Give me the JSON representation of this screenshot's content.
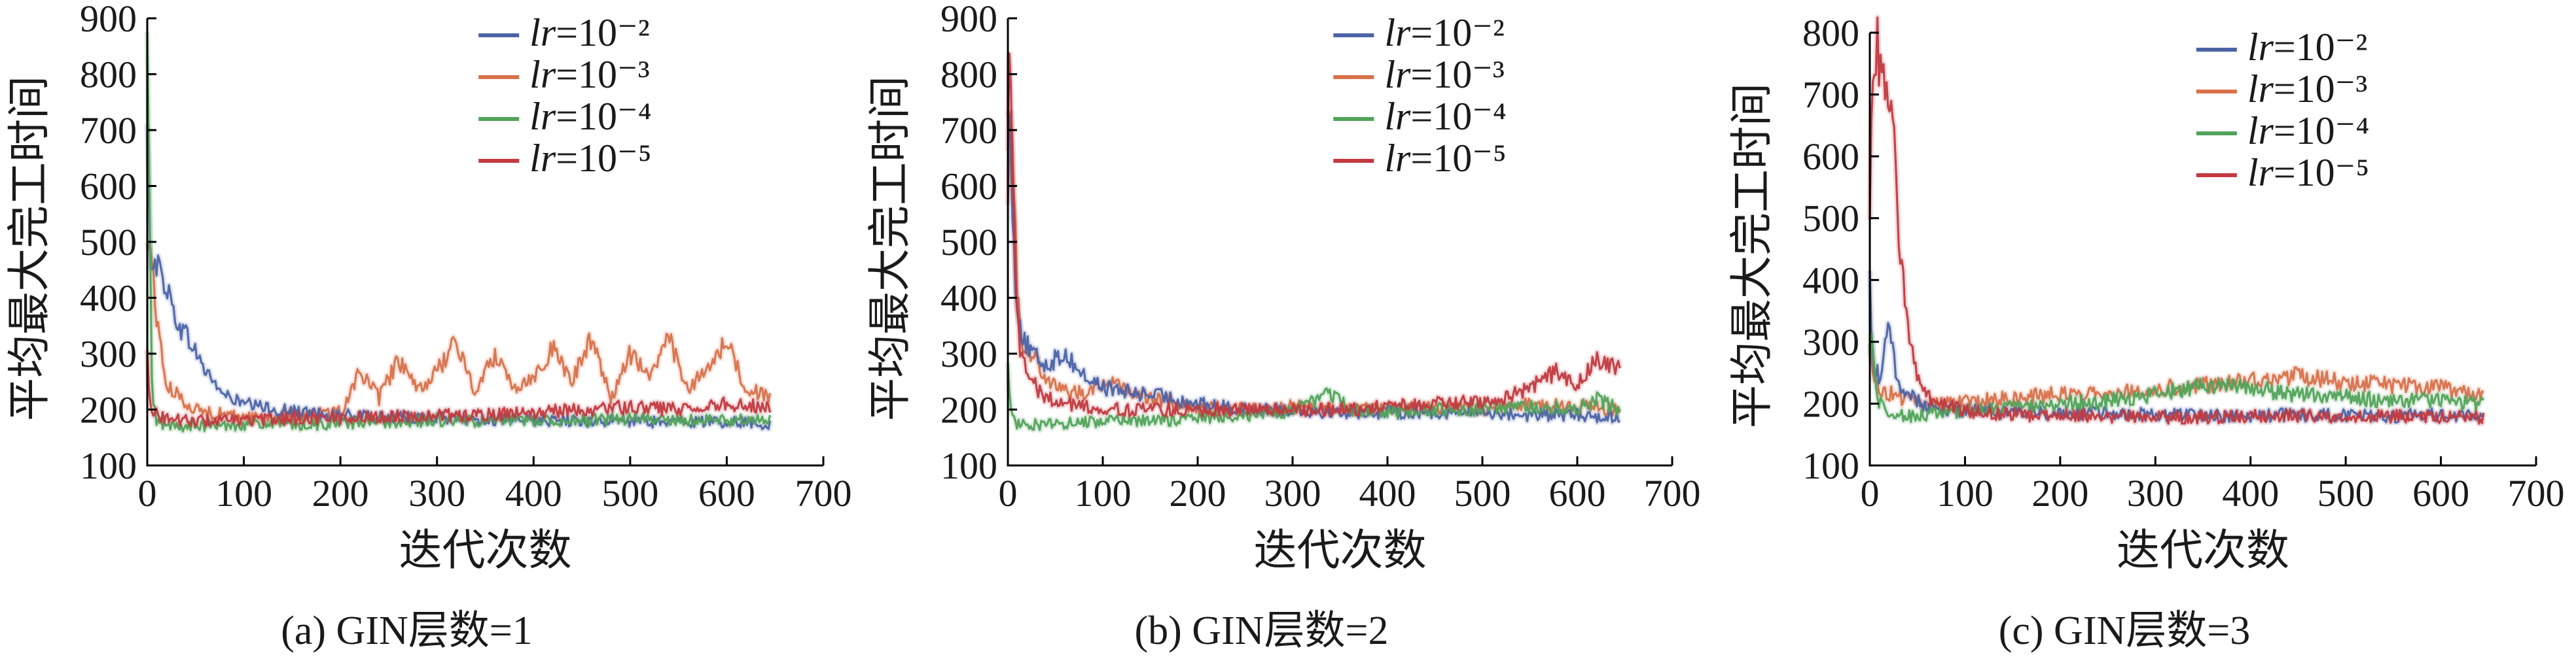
{
  "colors": {
    "lr_1e-2": "#4c63a6",
    "lr_1e-3": "#d9714a",
    "lr_1e-4": "#52a35a",
    "lr_1e-5": "#c23a3f"
  },
  "chart_data": [
    {
      "type": "line",
      "caption": "(a) GIN层数=1",
      "xlabel": "迭代次数",
      "ylabel": "平均最大完工时间",
      "xlim": [
        0,
        700
      ],
      "ylim": [
        100,
        900
      ],
      "xticks": [
        0,
        100,
        200,
        300,
        400,
        500,
        600,
        700
      ],
      "yticks": [
        100,
        200,
        300,
        400,
        500,
        600,
        700,
        800,
        900
      ],
      "legend_position": "top-right",
      "series": [
        {
          "name": "lr=10⁻²",
          "color_key": "lr_1e-2",
          "x": [
            0,
            3,
            10,
            20,
            30,
            45,
            60,
            80,
            100,
            130,
            160,
            200,
            250,
            300,
            350,
            400,
            450,
            500,
            550,
            600,
            645
          ],
          "y": [
            700,
            480,
            460,
            420,
            360,
            320,
            270,
            225,
            210,
            200,
            195,
            190,
            185,
            185,
            182,
            180,
            180,
            178,
            178,
            178,
            175
          ]
        },
        {
          "name": "lr=10⁻³",
          "color_key": "lr_1e-3",
          "x": [
            0,
            3,
            10,
            20,
            35,
            50,
            80,
            120,
            160,
            200,
            220,
            240,
            260,
            280,
            300,
            320,
            340,
            360,
            380,
            400,
            420,
            440,
            460,
            480,
            500,
            520,
            540,
            560,
            580,
            600,
            620,
            645
          ],
          "y": [
            490,
            500,
            360,
            240,
            220,
            200,
            190,
            185,
            190,
            195,
            270,
            220,
            290,
            230,
            270,
            320,
            230,
            300,
            240,
            260,
            310,
            250,
            330,
            220,
            300,
            260,
            330,
            230,
            280,
            320,
            240,
            220
          ]
        },
        {
          "name": "lr=10⁻⁴",
          "color_key": "lr_1e-4",
          "x": [
            0,
            2,
            5,
            10,
            20,
            40,
            80,
            120,
            160,
            200,
            250,
            300,
            350,
            400,
            450,
            500,
            550,
            600,
            645
          ],
          "y": [
            860,
            600,
            220,
            180,
            170,
            170,
            172,
            175,
            172,
            175,
            178,
            180,
            178,
            182,
            180,
            185,
            180,
            182,
            180
          ]
        },
        {
          "name": "lr=10⁻⁵",
          "color_key": "lr_1e-5",
          "x": [
            0,
            2,
            5,
            10,
            20,
            40,
            80,
            120,
            160,
            200,
            250,
            300,
            350,
            400,
            450,
            500,
            550,
            600,
            645
          ],
          "y": [
            300,
            240,
            200,
            190,
            185,
            180,
            180,
            182,
            185,
            185,
            188,
            190,
            190,
            195,
            200,
            205,
            200,
            210,
            205
          ]
        }
      ]
    },
    {
      "type": "line",
      "caption": "(b) GIN层数=2",
      "xlabel": "迭代次数",
      "ylabel": "平均最大完工时间",
      "xlim": [
        0,
        700
      ],
      "ylim": [
        100,
        900
      ],
      "xticks": [
        0,
        100,
        200,
        300,
        400,
        500,
        600,
        700
      ],
      "yticks": [
        100,
        200,
        300,
        400,
        500,
        600,
        700,
        800,
        900
      ],
      "legend_position": "top-right",
      "series": [
        {
          "name": "lr=10⁻²",
          "color_key": "lr_1e-2",
          "x": [
            0,
            3,
            8,
            15,
            25,
            40,
            60,
            80,
            100,
            130,
            160,
            200,
            250,
            300,
            350,
            400,
            450,
            500,
            550,
            600,
            645
          ],
          "y": [
            780,
            650,
            420,
            330,
            300,
            280,
            300,
            260,
            240,
            230,
            225,
            210,
            200,
            200,
            195,
            195,
            195,
            195,
            190,
            190,
            185
          ]
        },
        {
          "name": "lr=10⁻³",
          "color_key": "lr_1e-3",
          "x": [
            0,
            3,
            6,
            10,
            15,
            25,
            40,
            60,
            80,
            100,
            120,
            150,
            200,
            250,
            300,
            350,
            400,
            450,
            500,
            550,
            600,
            645
          ],
          "y": [
            600,
            780,
            620,
            400,
            320,
            300,
            260,
            230,
            230,
            250,
            240,
            220,
            205,
            200,
            205,
            200,
            200,
            205,
            200,
            210,
            205,
            200
          ]
        },
        {
          "name": "lr=10⁻⁴",
          "color_key": "lr_1e-4",
          "x": [
            0,
            2,
            5,
            10,
            20,
            40,
            80,
            120,
            160,
            200,
            250,
            300,
            340,
            360,
            400,
            450,
            500,
            550,
            600,
            620,
            645
          ],
          "y": [
            300,
            220,
            180,
            175,
            175,
            172,
            178,
            180,
            180,
            185,
            190,
            195,
            230,
            200,
            195,
            200,
            200,
            205,
            200,
            220,
            200
          ]
        },
        {
          "name": "lr=10⁻⁵",
          "color_key": "lr_1e-5",
          "x": [
            0,
            2,
            4,
            8,
            12,
            20,
            40,
            80,
            120,
            160,
            200,
            250,
            300,
            350,
            400,
            450,
            500,
            540,
            560,
            580,
            600,
            620,
            645
          ],
          "y": [
            700,
            840,
            700,
            460,
            320,
            260,
            220,
            205,
            200,
            200,
            200,
            200,
            200,
            200,
            205,
            210,
            215,
            230,
            250,
            270,
            245,
            290,
            275
          ]
        }
      ]
    },
    {
      "type": "line",
      "caption": "(c) GIN层数=3",
      "xlabel": "迭代次数",
      "ylabel": "平均最大完工时间",
      "xlim": [
        0,
        700
      ],
      "ylim": [
        100,
        800
      ],
      "xticks": [
        0,
        100,
        200,
        300,
        400,
        500,
        600,
        700
      ],
      "yticks": [
        100,
        200,
        300,
        400,
        500,
        600,
        700,
        800
      ],
      "legend_position": "top-right",
      "series": [
        {
          "name": "lr=10⁻²",
          "color_key": "lr_1e-2",
          "x": [
            0,
            2,
            5,
            10,
            20,
            30,
            45,
            60,
            80,
            120,
            160,
            200,
            250,
            300,
            350,
            400,
            450,
            500,
            550,
            600,
            645
          ],
          "y": [
            420,
            300,
            260,
            240,
            320,
            230,
            210,
            195,
            190,
            188,
            185,
            185,
            185,
            182,
            182,
            180,
            182,
            180,
            180,
            182,
            180
          ]
        },
        {
          "name": "lr=10⁻³",
          "color_key": "lr_1e-3",
          "x": [
            0,
            3,
            8,
            15,
            25,
            40,
            60,
            80,
            120,
            160,
            200,
            250,
            300,
            350,
            400,
            450,
            500,
            550,
            600,
            645
          ],
          "y": [
            300,
            240,
            230,
            220,
            215,
            205,
            200,
            200,
            205,
            210,
            215,
            220,
            225,
            230,
            240,
            245,
            235,
            230,
            225,
            215
          ]
        },
        {
          "name": "lr=10⁻⁴",
          "color_key": "lr_1e-4",
          "x": [
            0,
            2,
            5,
            10,
            20,
            40,
            80,
            120,
            160,
            200,
            250,
            300,
            350,
            400,
            450,
            500,
            550,
            600,
            645
          ],
          "y": [
            280,
            340,
            240,
            200,
            185,
            180,
            185,
            190,
            195,
            200,
            205,
            215,
            230,
            225,
            215,
            210,
            205,
            205,
            200
          ]
        },
        {
          "name": "lr=10⁻⁵",
          "color_key": "lr_1e-5",
          "x": [
            0,
            2,
            5,
            8,
            12,
            18,
            25,
            30,
            35,
            40,
            45,
            50,
            60,
            80,
            120,
            160,
            200,
            250,
            300,
            350,
            400,
            450,
            500,
            550,
            600,
            645
          ],
          "y": [
            500,
            700,
            760,
            780,
            720,
            700,
            640,
            480,
            400,
            330,
            280,
            240,
            210,
            195,
            185,
            182,
            180,
            180,
            178,
            178,
            180,
            180,
            178,
            180,
            178,
            178
          ]
        }
      ]
    }
  ]
}
